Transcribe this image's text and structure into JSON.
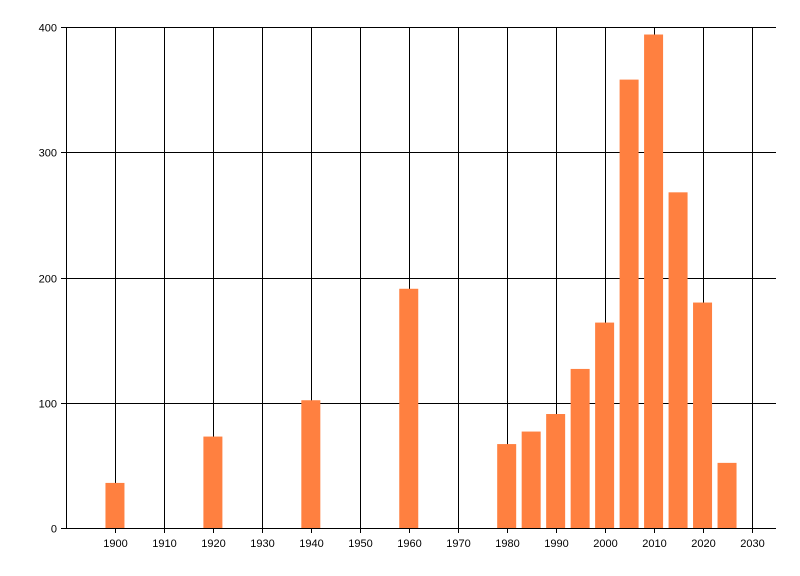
{
  "chart_data": {
    "type": "bar",
    "x": [
      1900,
      1920,
      1940,
      1960,
      1980,
      1985,
      1990,
      1995,
      2000,
      2005,
      2010,
      2015,
      2020,
      2025
    ],
    "values": [
      36,
      73,
      102,
      191,
      67,
      77,
      91,
      127,
      164,
      358,
      394,
      268,
      180,
      52
    ],
    "xlim": [
      1890,
      2035
    ],
    "ylim": [
      0,
      400
    ],
    "x_ticks": [
      1900,
      1910,
      1920,
      1930,
      1940,
      1950,
      1960,
      1970,
      1980,
      1990,
      2000,
      2010,
      2020,
      2030
    ],
    "y_ticks": [
      0,
      100,
      200,
      300,
      400
    ],
    "grid": true,
    "bar_color": "#ff8040",
    "grid_color": "#000000"
  }
}
